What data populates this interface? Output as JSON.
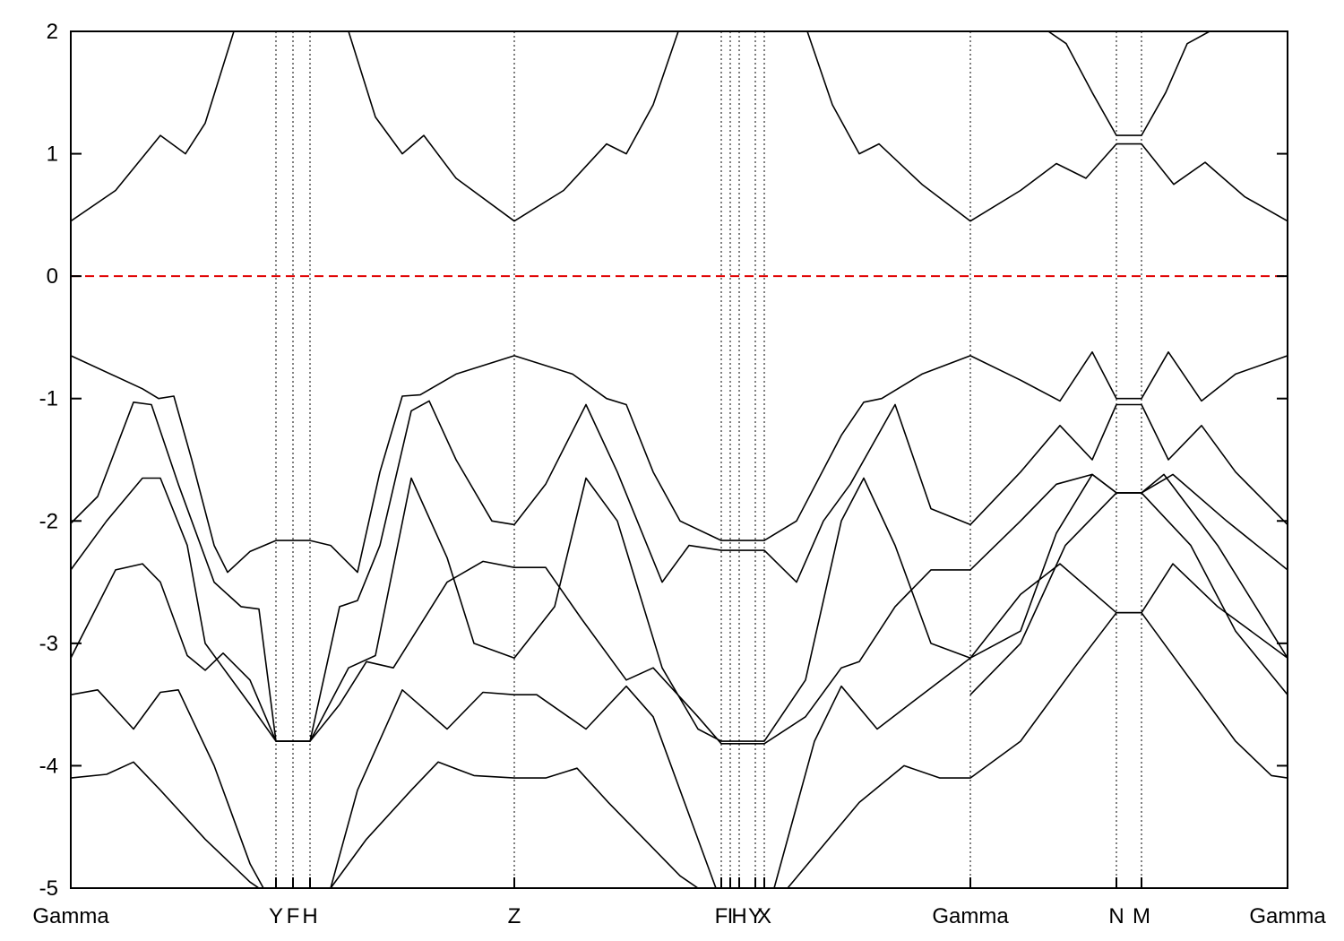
{
  "chart_data": {
    "type": "line",
    "xlim": [
      0,
      1358
    ],
    "ylim": [
      -5,
      2
    ],
    "yticks": [
      2,
      1,
      0,
      -1,
      -2,
      -3,
      -4,
      -5
    ],
    "xticks": [
      {
        "value": 0,
        "label": "Gamma"
      },
      {
        "value": 229,
        "label": "Y"
      },
      {
        "value": 248,
        "label": "F"
      },
      {
        "value": 267,
        "label": "H"
      },
      {
        "value": 495,
        "label": "Z"
      },
      {
        "value": 726,
        "label": "F"
      },
      {
        "value": 736,
        "label": "I"
      },
      {
        "value": 746,
        "label": "H"
      },
      {
        "value": 764,
        "label": "Y"
      },
      {
        "value": 774,
        "label": "X"
      },
      {
        "value": 1004,
        "label": "Gamma"
      },
      {
        "value": 1167,
        "label": "N"
      },
      {
        "value": 1195,
        "label": "M"
      },
      {
        "value": 1358,
        "label": "Gamma"
      }
    ],
    "fermi_level": 0,
    "fermi_color": "#e00000",
    "series": [
      {
        "color": "#000000",
        "x": [
          0,
          50,
          100,
          128,
          150,
          182,
          null,
          310,
          340,
          370,
          394,
          430,
          495,
          550,
          598,
          620,
          650,
          678,
          null,
          822,
          850,
          880,
          902,
          950,
          1004,
          1060,
          1100,
          1133,
          1167,
          1195,
          1231,
          1266,
          1310,
          1358
        ],
        "values": [
          0.45,
          0.7,
          1.15,
          1.0,
          1.25,
          2.0,
          null,
          2.0,
          1.3,
          1.0,
          1.15,
          0.8,
          0.45,
          0.7,
          1.08,
          1.0,
          1.4,
          2.0,
          null,
          2.0,
          1.4,
          1.0,
          1.08,
          0.75,
          0.45,
          0.7,
          0.92,
          0.8,
          1.08,
          1.08,
          0.75,
          0.93,
          0.65,
          0.45
        ]
      },
      {
        "color": "#000000",
        "x": [
          1091,
          1111,
          1140,
          1167,
          1195,
          1222,
          1246,
          1271
        ],
        "values": [
          2.0,
          1.9,
          1.5,
          1.15,
          1.15,
          1.5,
          1.9,
          2.0
        ]
      },
      {
        "color": "#000000",
        "x": [
          0,
          80,
          98,
          115,
          135,
          160,
          175,
          200,
          229,
          267,
          290,
          320,
          345,
          370,
          390,
          430,
          495,
          560,
          598,
          620,
          650,
          680,
          726,
          774,
          810,
          860,
          885,
          905,
          950,
          1004,
          1060,
          1104,
          1140,
          1167,
          1195,
          1225,
          1262,
          1300,
          1358
        ],
        "values": [
          -0.65,
          -0.92,
          -1.0,
          -0.98,
          -1.5,
          -2.2,
          -2.42,
          -2.25,
          -2.16,
          -2.16,
          -2.2,
          -2.42,
          -1.6,
          -0.98,
          -0.97,
          -0.8,
          -0.65,
          -0.8,
          -1.0,
          -1.05,
          -1.6,
          -2.0,
          -2.16,
          -2.16,
          -2.0,
          -1.3,
          -1.03,
          -1.0,
          -0.8,
          -0.65,
          -0.85,
          -1.02,
          -0.62,
          -1.0,
          -1.0,
          -0.62,
          -1.02,
          -0.8,
          -0.65
        ]
      },
      {
        "color": "#000000",
        "x": [
          0,
          30,
          70,
          90,
          120,
          160,
          190,
          210,
          229,
          267,
          300,
          320,
          345,
          380,
          400,
          430,
          470,
          495,
          530,
          575,
          610,
          660,
          690,
          726,
          774,
          810,
          840,
          870,
          920,
          960,
          1004,
          1060,
          1104,
          1140,
          1167,
          1195,
          1225,
          1262,
          1300,
          1358
        ],
        "values": [
          -2.02,
          -1.8,
          -1.03,
          -1.05,
          -1.7,
          -2.5,
          -2.7,
          -2.72,
          -3.8,
          -3.8,
          -2.7,
          -2.65,
          -2.2,
          -1.1,
          -1.02,
          -1.5,
          -2.0,
          -2.03,
          -1.7,
          -1.05,
          -1.6,
          -2.5,
          -2.2,
          -2.24,
          -2.24,
          -2.5,
          -2.0,
          -1.7,
          -1.05,
          -1.9,
          -2.03,
          -1.6,
          -1.22,
          -1.5,
          -1.05,
          -1.05,
          -1.5,
          -1.22,
          -1.6,
          -2.03
        ]
      },
      {
        "color": "#000000",
        "x": [
          0,
          40,
          80,
          100,
          130,
          150,
          170,
          200,
          229,
          267,
          310,
          340,
          380,
          420,
          450,
          495,
          540,
          575,
          610,
          660,
          700,
          726,
          774,
          820,
          860,
          885,
          920,
          960,
          1004,
          1060,
          1100,
          1140,
          1167,
          1195,
          1220,
          1280,
          1358
        ],
        "values": [
          -2.4,
          -2.0,
          -1.65,
          -1.65,
          -2.2,
          -3.0,
          -3.2,
          -3.5,
          -3.8,
          -3.8,
          -3.2,
          -3.1,
          -1.65,
          -2.3,
          -3.0,
          -3.12,
          -2.7,
          -1.65,
          -2.0,
          -3.2,
          -3.7,
          -3.8,
          -3.8,
          -3.3,
          -2.0,
          -1.65,
          -2.2,
          -3.0,
          -3.12,
          -2.9,
          -2.1,
          -1.62,
          -1.77,
          -1.77,
          -1.62,
          -2.2,
          -3.12
        ]
      },
      {
        "color": "#000000",
        "x": [
          0,
          50,
          80,
          100,
          130,
          150,
          170,
          200,
          229,
          267,
          300,
          330,
          360,
          420,
          460,
          495,
          530,
          570,
          620,
          650,
          700,
          726,
          774,
          820,
          860,
          880,
          920,
          960,
          1004,
          1060,
          1100,
          1140,
          1167,
          1195,
          1230,
          1290,
          1358
        ],
        "values": [
          -3.12,
          -2.4,
          -2.35,
          -2.5,
          -3.1,
          -3.22,
          -3.08,
          -3.3,
          -3.8,
          -3.8,
          -3.5,
          -3.15,
          -3.2,
          -2.5,
          -2.33,
          -2.38,
          -2.38,
          -2.8,
          -3.3,
          -3.2,
          -3.6,
          -3.82,
          -3.82,
          -3.6,
          -3.2,
          -3.15,
          -2.7,
          -2.4,
          -2.4,
          -2.0,
          -1.7,
          -1.62,
          -1.77,
          -1.77,
          -1.62,
          -2.0,
          -2.4
        ]
      },
      {
        "color": "#000000",
        "x": [
          0,
          30,
          70,
          100,
          120,
          160,
          200,
          215,
          null,
          290,
          320,
          370,
          420,
          460,
          495,
          520,
          575,
          620,
          650,
          700,
          720,
          null,
          785,
          830,
          860,
          900,
          950,
          1004,
          1060,
          1104,
          1167,
          1195,
          1230,
          1280,
          1358
        ],
        "values": [
          -3.42,
          -3.38,
          -3.7,
          -3.4,
          -3.38,
          -4.0,
          -4.8,
          -5.0,
          null,
          -5.0,
          -4.2,
          -3.38,
          -3.7,
          -3.4,
          -3.42,
          -3.42,
          -3.7,
          -3.35,
          -3.6,
          -4.6,
          -5.0,
          null,
          -5.0,
          -3.8,
          -3.35,
          -3.7,
          -3.42,
          -3.12,
          -2.6,
          -2.35,
          -2.75,
          -2.75,
          -2.35,
          -2.7,
          -3.12
        ]
      },
      {
        "color": "#000000",
        "x": [
          0,
          40,
          70,
          100,
          150,
          200,
          210,
          null,
          290,
          330,
          380,
          410,
          450,
          495,
          530,
          565,
          600,
          680,
          700,
          null,
          800,
          880,
          930,
          970,
          1004,
          1060,
          1120,
          1167,
          1195,
          1240,
          1300,
          1340,
          1358
        ],
        "values": [
          -4.1,
          -4.07,
          -3.97,
          -4.2,
          -4.6,
          -4.95,
          -5.0,
          null,
          -5.0,
          -4.6,
          -4.2,
          -3.97,
          -4.08,
          -4.1,
          -4.1,
          -4.02,
          -4.3,
          -4.9,
          -5.0,
          null,
          -5.0,
          -4.3,
          -4.0,
          -4.1,
          -4.1,
          -3.8,
          -3.2,
          -2.75,
          -2.75,
          -3.2,
          -3.8,
          -4.08,
          -4.1
        ]
      },
      {
        "color": "#000000",
        "x": [
          1004,
          1060,
          1110,
          1167,
          1195,
          1250,
          1300,
          1358
        ],
        "values": [
          -3.42,
          -3.0,
          -2.2,
          -1.77,
          -1.77,
          -2.2,
          -2.9,
          -3.42
        ]
      }
    ]
  }
}
